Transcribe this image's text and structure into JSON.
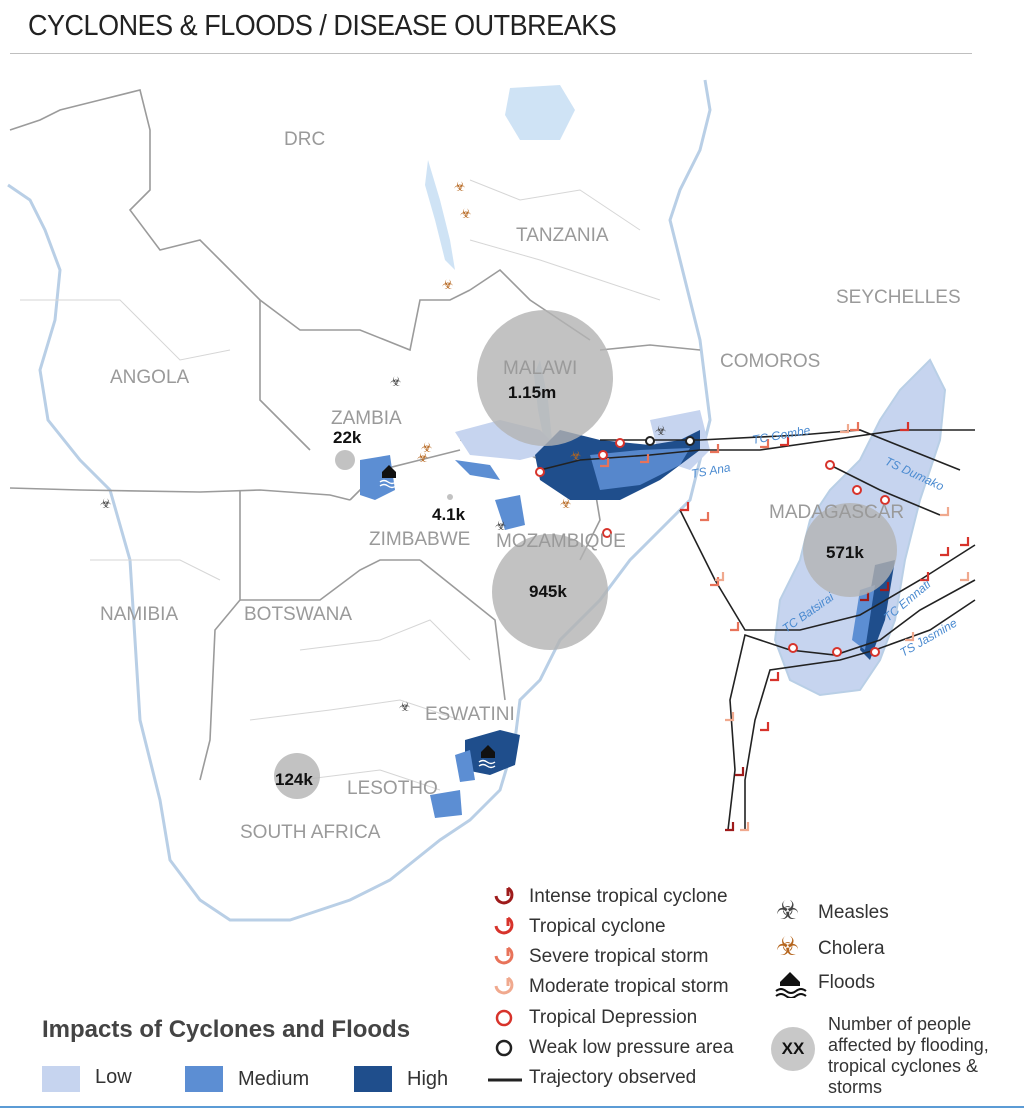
{
  "title": "CYCLONES & FLOODS / DISEASE OUTBREAKS",
  "countries": {
    "drc": "DRC",
    "tanzania": "TANZANIA",
    "seychelles": "SEYCHELLES",
    "angola": "ANGOLA",
    "malawi": "MALAWI",
    "comoros": "COMOROS",
    "zambia": "ZAMBIA",
    "madagascar": "MADAGASCAR",
    "zimbabwe": "ZIMBABWE",
    "mozambique": "MOZAMBIQUE",
    "namibia": "NAMIBIA",
    "botswana": "BOTSWANA",
    "eswatini": "ESWATINI",
    "lesotho": "LESOTHO",
    "south_africa": "SOUTH AFRICA"
  },
  "affected": {
    "malawi": "1.15m",
    "zambia": "22k",
    "zimbabwe": "4.1k",
    "mozambique": "945k",
    "madagascar": "571k",
    "south_africa": "124k"
  },
  "storms": {
    "gombe": "TC Gombe",
    "ana": "TS Ana",
    "dumako": "TS Dumako",
    "batsirai": "TC Batsirai",
    "emnati": "TC Emnati",
    "jasmine": "TS Jasmine"
  },
  "legend": {
    "cyclone_items": [
      "Intense tropical cyclone",
      "Tropical cyclone",
      "Severe tropical storm",
      "Moderate tropical storm",
      "Tropical Depression",
      "Weak low pressure area",
      "Trajectory observed"
    ],
    "hazard_items": [
      "Measles",
      "Cholera",
      "Floods"
    ],
    "xx_label": "XX",
    "xx_text": [
      "Number of people",
      "affected by flooding,",
      "tropical cyclones &",
      "storms"
    ],
    "impacts_title": "Impacts of Cyclones and Floods",
    "impacts": [
      "Low",
      "Medium",
      "High"
    ]
  },
  "colors": {
    "low": "#c6d4ef",
    "medium": "#5c8ed3",
    "high": "#1f4e8c",
    "intense": "#9e1b1b",
    "cyclone": "#d7332b",
    "severe": "#e8735a",
    "moderate": "#f0a98e",
    "depression": "#d7332b",
    "cholera": "#b5651d",
    "measles": "#444444",
    "bubble": "#b3b3b3",
    "border": "#9b9b9b",
    "water": "#cfe3f5"
  }
}
